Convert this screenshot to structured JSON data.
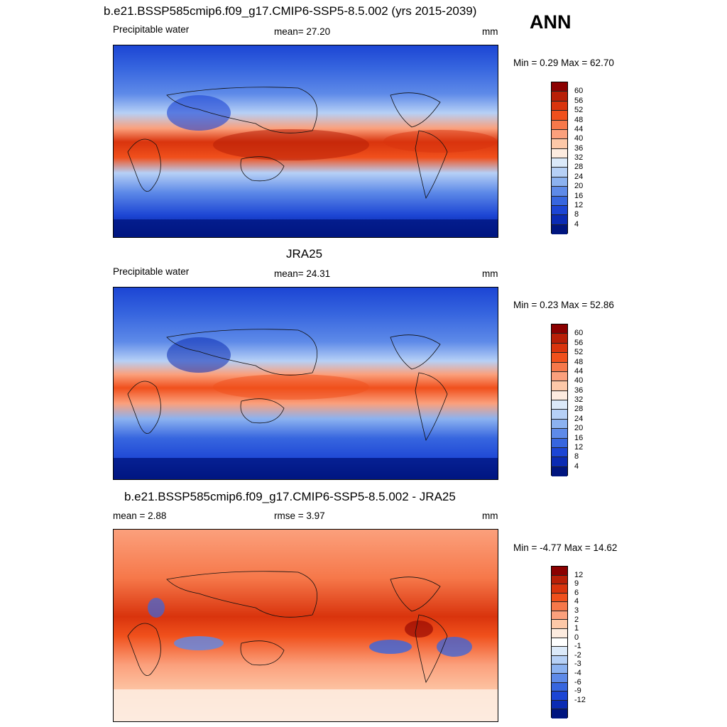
{
  "header": {
    "season": "ANN"
  },
  "panels": [
    {
      "title": "b.e21.BSSP585cmip6.f09_g17.CMIP6-SSP5-8.5.002 (yrs 2015-2039)",
      "left": "Precipitable water",
      "center": "mean=  27.20",
      "right": "mm",
      "minmax": "Min =   0.29 Max =  62.70",
      "colors": [
        "#8b0000",
        "#b81f07",
        "#d9340d",
        "#f0501c",
        "#f6784a",
        "#fba07c",
        "#fdc8a8",
        "#fdebdf",
        "#dbe9f9",
        "#b6d0f6",
        "#8cb2f0",
        "#5e8ae8",
        "#3766df",
        "#1c45d4",
        "#0b2bb3",
        "#00157f"
      ],
      "levels": [
        "60",
        "56",
        "52",
        "48",
        "44",
        "40",
        "36",
        "32",
        "28",
        "24",
        "20",
        "16",
        "12",
        "8",
        "4"
      ]
    },
    {
      "title": "JRA25",
      "left": "Precipitable water",
      "center": "mean=  24.31",
      "right": "mm",
      "minmax": "Min =   0.23 Max =  52.86",
      "colors": [
        "#8b0000",
        "#b81f07",
        "#d9340d",
        "#f0501c",
        "#f6784a",
        "#fba07c",
        "#fdc8a8",
        "#fdebdf",
        "#dbe9f9",
        "#b6d0f6",
        "#8cb2f0",
        "#5e8ae8",
        "#3766df",
        "#1c45d4",
        "#0b2bb3",
        "#00157f"
      ],
      "levels": [
        "60",
        "56",
        "52",
        "48",
        "44",
        "40",
        "36",
        "32",
        "28",
        "24",
        "20",
        "16",
        "12",
        "8",
        "4"
      ]
    },
    {
      "title": "b.e21.BSSP585cmip6.f09_g17.CMIP6-SSP5-8.5.002 - JRA25",
      "left": "mean =   2.88",
      "center": "rmse =   3.97",
      "right": "mm",
      "minmax": "Min =  -4.77 Max =  14.62",
      "colors": [
        "#8b0000",
        "#b81f07",
        "#d9340d",
        "#f0501c",
        "#f6784a",
        "#fba07c",
        "#fdc8a8",
        "#fdebdf",
        "#ffffff",
        "#dbe9f9",
        "#b6d0f6",
        "#8cb2f0",
        "#5e8ae8",
        "#3766df",
        "#1c45d4",
        "#0b2bb3",
        "#00157f"
      ],
      "levels": [
        "12",
        "9",
        "6",
        "4",
        "3",
        "2",
        "1",
        "0",
        "-1",
        "-2",
        "-3",
        "-4",
        "-6",
        "-9",
        "-12"
      ]
    }
  ]
}
